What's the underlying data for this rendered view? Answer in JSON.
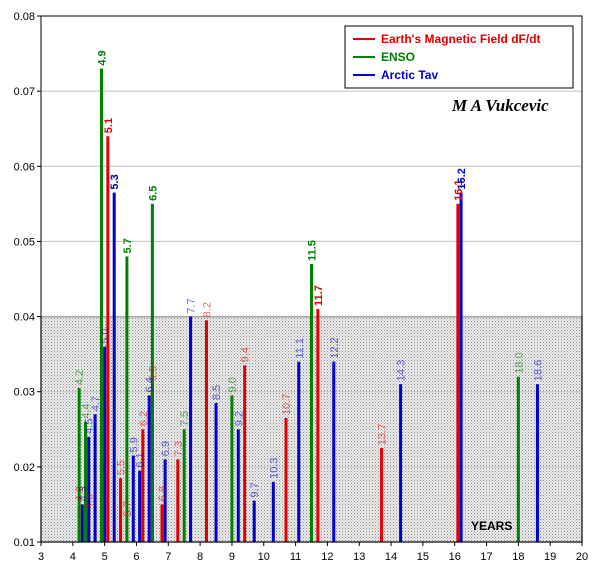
{
  "chart_data": {
    "type": "bar",
    "xlabel": "YEARS",
    "annotation": "M A Vukcevic",
    "xlim": [
      3,
      20
    ],
    "ylim": [
      0.01,
      0.08
    ],
    "x_ticks": [
      "3",
      "4",
      "5",
      "6",
      "7",
      "8",
      "9",
      "10",
      "11",
      "12",
      "13",
      "14",
      "15",
      "16",
      "17",
      "18",
      "19",
      "20"
    ],
    "y_ticks": [
      "0.01",
      "0.02",
      "0.03",
      "0.04",
      "0.05",
      "0.06",
      "0.07",
      "0.08"
    ],
    "grid": "horizontal",
    "legend_position": "top-right",
    "shaded_region": {
      "y_from": 0.01,
      "y_to": 0.04
    },
    "series": [
      {
        "name": "Earth's Magnetic Field dF/dt",
        "color": "#e00000",
        "points": [
          {
            "x": 4.2,
            "y": 0.015,
            "label": "4.2"
          },
          {
            "x": 4.5,
            "y": 0.014,
            "label": "4.5"
          },
          {
            "x": 5.1,
            "y": 0.064,
            "label": "5.1"
          },
          {
            "x": 5.5,
            "y": 0.0185,
            "label": "5.5"
          },
          {
            "x": 5.7,
            "y": 0.013,
            "label": "5.7"
          },
          {
            "x": 6.2,
            "y": 0.025,
            "label": "6.2"
          },
          {
            "x": 6.5,
            "y": 0.031,
            "label": "6.5"
          },
          {
            "x": 6.8,
            "y": 0.015,
            "label": "6.8"
          },
          {
            "x": 7.3,
            "y": 0.021,
            "label": "7.3"
          },
          {
            "x": 8.2,
            "y": 0.0395,
            "label": "8.2"
          },
          {
            "x": 9.4,
            "y": 0.0335,
            "label": "9.4"
          },
          {
            "x": 10.7,
            "y": 0.0265,
            "label": "10.7"
          },
          {
            "x": 11.7,
            "y": 0.041,
            "label": "11.7"
          },
          {
            "x": 13.7,
            "y": 0.0225,
            "label": "13.7"
          },
          {
            "x": 16.1,
            "y": 0.055,
            "label": "16.1"
          }
        ]
      },
      {
        "name": "ENSO",
        "color": "#008000",
        "points": [
          {
            "x": 4.2,
            "y": 0.0305,
            "label": "4.2"
          },
          {
            "x": 4.4,
            "y": 0.026,
            "label": "4.4"
          },
          {
            "x": 4.9,
            "y": 0.073,
            "label": "4.9"
          },
          {
            "x": 5.7,
            "y": 0.048,
            "label": "5.7"
          },
          {
            "x": 6.5,
            "y": 0.055,
            "label": "6.5"
          },
          {
            "x": 7.5,
            "y": 0.025,
            "label": "7.5"
          },
          {
            "x": 9.0,
            "y": 0.0295,
            "label": "9.0"
          },
          {
            "x": 11.5,
            "y": 0.047,
            "label": "11.5"
          },
          {
            "x": 18.0,
            "y": 0.032,
            "label": "18.0"
          }
        ]
      },
      {
        "name": "Arctic Tav",
        "color": "#0000d0",
        "points": [
          {
            "x": 4.3,
            "y": 0.015,
            "label": "4.3"
          },
          {
            "x": 4.5,
            "y": 0.024,
            "label": "4.5"
          },
          {
            "x": 4.7,
            "y": 0.027,
            "label": "4.7"
          },
          {
            "x": 5.0,
            "y": 0.036,
            "label": "5.0"
          },
          {
            "x": 5.3,
            "y": 0.0565,
            "label": "5.3"
          },
          {
            "x": 5.9,
            "y": 0.0215,
            "label": "5.9"
          },
          {
            "x": 6.1,
            "y": 0.0195,
            "label": "6.1"
          },
          {
            "x": 6.4,
            "y": 0.0295,
            "label": "6.4"
          },
          {
            "x": 6.9,
            "y": 0.021,
            "label": "6.9"
          },
          {
            "x": 7.7,
            "y": 0.04,
            "label": "7.7"
          },
          {
            "x": 8.5,
            "y": 0.0285,
            "label": "8.5"
          },
          {
            "x": 9.2,
            "y": 0.025,
            "label": "9.2"
          },
          {
            "x": 9.7,
            "y": 0.0155,
            "label": "9.7"
          },
          {
            "x": 10.3,
            "y": 0.018,
            "label": "10.3"
          },
          {
            "x": 11.1,
            "y": 0.034,
            "label": "11.1"
          },
          {
            "x": 12.2,
            "y": 0.034,
            "label": "12.2"
          },
          {
            "x": 14.3,
            "y": 0.031,
            "label": "14.3"
          },
          {
            "x": 16.2,
            "y": 0.0565,
            "label": "16.2"
          },
          {
            "x": 18.6,
            "y": 0.031,
            "label": "18.6"
          }
        ]
      }
    ]
  }
}
